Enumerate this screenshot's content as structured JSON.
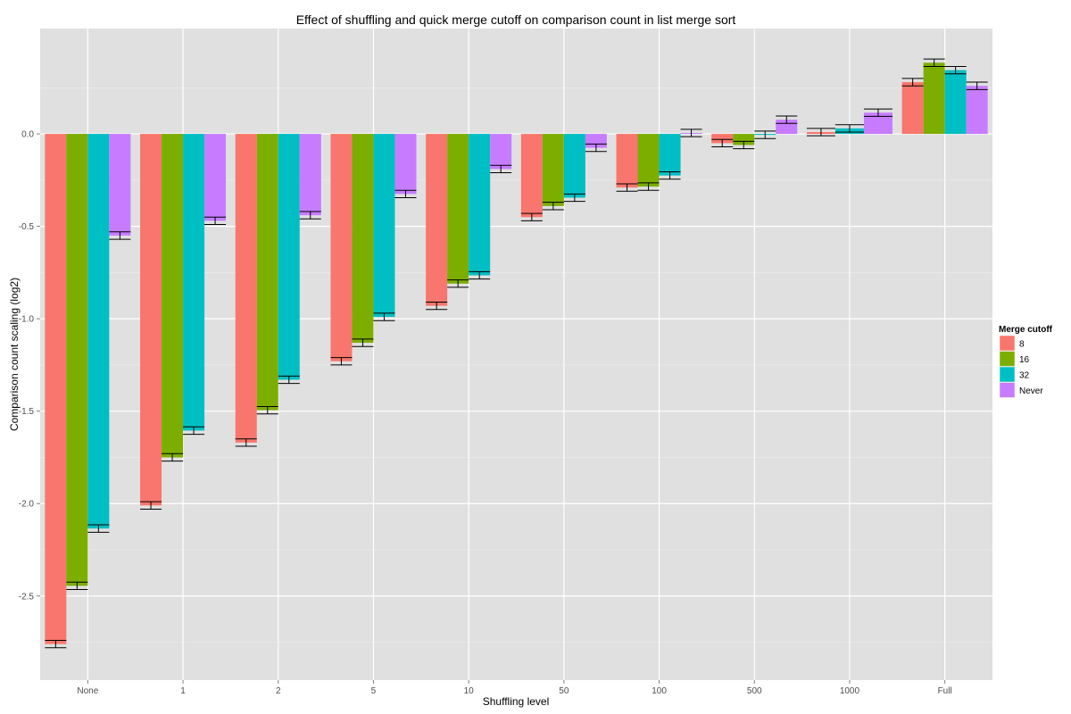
{
  "chart_data": {
    "type": "bar",
    "title": "Effect of shuffling and quick merge cutoff on comparison count in list merge sort",
    "xlabel": "Shuffling level",
    "ylabel": "Comparison count scaling (log2)",
    "categories": [
      "None",
      "1",
      "2",
      "5",
      "10",
      "50",
      "100",
      "500",
      "1000",
      "Full"
    ],
    "ylim": [
      -2.955,
      0.57
    ],
    "yticks": [
      -2.5,
      -2.0,
      -1.5,
      -1.0,
      -0.5,
      0.0
    ],
    "ytick_labels": [
      "-2.5",
      "-2.0",
      "-1.5",
      "-1.0",
      "-0.5",
      "0.0"
    ],
    "grid": true,
    "error_halfwidth": 0.02,
    "legend": {
      "title": "Merge cutoff",
      "placement": "right"
    },
    "series": [
      {
        "name": "8",
        "color": "#F8766D",
        "values": [
          -2.76,
          -2.01,
          -1.67,
          -1.23,
          -0.93,
          -0.45,
          -0.29,
          -0.05,
          0.01,
          0.28
        ]
      },
      {
        "name": "16",
        "color": "#7CAE00",
        "values": [
          -2.445,
          -1.75,
          -1.495,
          -1.13,
          -0.81,
          -0.39,
          -0.285,
          -0.06,
          null,
          0.385
        ]
      },
      {
        "name": "32",
        "color": "#00BFC4",
        "values": [
          -2.135,
          -1.605,
          -1.33,
          -0.99,
          -0.765,
          -0.345,
          -0.225,
          -0.005,
          0.03,
          0.345
        ]
      },
      {
        "name": "Never",
        "color": "#C77CFF",
        "values": [
          -0.55,
          -0.47,
          -0.44,
          -0.325,
          -0.19,
          -0.075,
          0.005,
          0.077,
          0.115,
          0.26
        ]
      }
    ]
  }
}
